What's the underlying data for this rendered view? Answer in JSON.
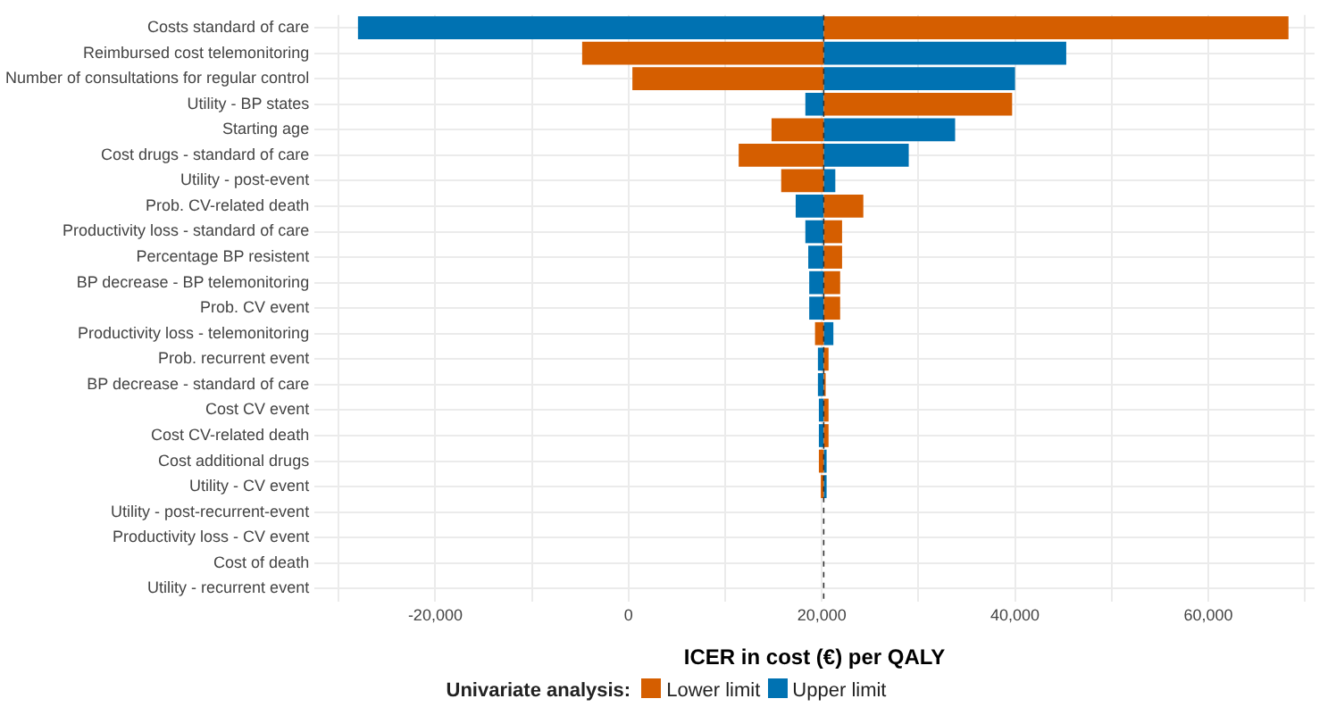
{
  "chart_data": {
    "type": "bar",
    "orientation": "horizontal",
    "xlabel": "ICER in cost (€) per QALY",
    "legend_title": "Univariate analysis:",
    "legend": "bottom",
    "grid": true,
    "categories": [
      "Costs standard of care",
      "Reimbursed cost telemonitoring",
      "Number of consultations for regular control",
      "Utility - BP states",
      "Starting age",
      "Cost drugs - standard of care",
      "Utility - post-event",
      "Prob. CV-related death",
      "Productivity loss - standard of care",
      "Percentage BP resistent",
      "BP decrease - BP telemonitoring",
      "Prob. CV event",
      "Productivity loss - telemonitoring",
      "Prob. recurrent event",
      "BP decrease - standard of care",
      "Cost CV event",
      "Cost CV-related death",
      "Cost additional drugs",
      "Utility - CV event",
      "Utility - post-recurrent-event",
      "Productivity loss - CV event",
      "Cost of death",
      "Utility - recurrent event"
    ],
    "series": [
      {
        "name": "Lower limit",
        "color": "#d55e00",
        "base": [
          20200,
          20200,
          20200,
          20200,
          20200,
          20200,
          20200,
          20200,
          20200,
          20200,
          20200,
          20200,
          20200,
          20200,
          20200,
          20200,
          20200,
          20200,
          20200,
          null,
          null,
          null,
          null
        ],
        "values": [
          48100,
          -25000,
          -19800,
          19500,
          -5400,
          -8800,
          -4400,
          4100,
          1900,
          1900,
          1700,
          1700,
          -900,
          500,
          200,
          500,
          500,
          -500,
          -300,
          null,
          null,
          null,
          null
        ]
      },
      {
        "name": "Upper limit",
        "color": "#0072b2",
        "base": [
          20200,
          20200,
          20200,
          20200,
          20200,
          20200,
          20200,
          20200,
          20200,
          20200,
          20200,
          20200,
          20200,
          20200,
          20200,
          20200,
          20200,
          20200,
          20200,
          null,
          null,
          null,
          null
        ],
        "values": [
          -48200,
          25100,
          19800,
          -1900,
          13600,
          8800,
          1200,
          -2900,
          -1900,
          -1600,
          -1500,
          -1500,
          1000,
          -600,
          -600,
          -500,
          -500,
          300,
          300,
          null,
          null,
          null,
          null
        ]
      }
    ],
    "xlim": [
      -32500,
      71000
    ],
    "xticks": [
      {
        "value": -30000,
        "label": null
      },
      {
        "value": -20000,
        "label": "-20,000"
      },
      {
        "value": -10000,
        "label": null
      },
      0,
      {
        "value": 10000,
        "label": null
      },
      {
        "value": 20000,
        "label": "20,000"
      },
      {
        "value": 30000,
        "label": null
      },
      {
        "value": 40000,
        "label": "40,000"
      },
      {
        "value": 50000,
        "label": null
      },
      {
        "value": 60000,
        "label": "60,000"
      },
      {
        "value": 70000,
        "label": null
      }
    ],
    "ref_lines": [
      {
        "axis": "x",
        "value": 20200,
        "color": "#333333",
        "line_style": "dashed"
      }
    ]
  }
}
